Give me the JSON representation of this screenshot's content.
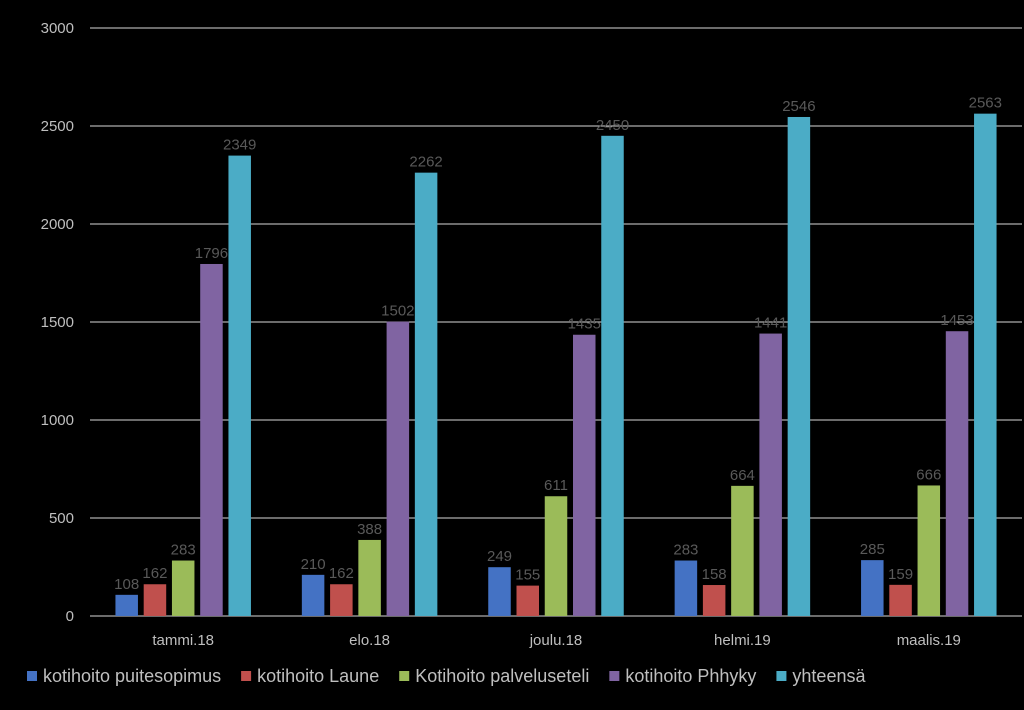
{
  "chart_data": {
    "type": "bar",
    "categories": [
      "tammi.18",
      "elo.18",
      "joulu.18",
      "helmi.19",
      "maalis.19"
    ],
    "series": [
      {
        "name": "kotihoito puitesopimus",
        "color": "#4472c4",
        "values": [
          108,
          210,
          249,
          283,
          285
        ]
      },
      {
        "name": "kotihoito Laune",
        "color": "#c0504d",
        "values": [
          162,
          162,
          155,
          158,
          159
        ]
      },
      {
        "name": "Kotihoito palveluseteli",
        "color": "#9bbb59",
        "values": [
          283,
          388,
          611,
          664,
          666
        ]
      },
      {
        "name": "kotihoito Phhyky",
        "color": "#8064a2",
        "values": [
          1796,
          1502,
          1435,
          1441,
          1453
        ]
      },
      {
        "name": "yhteensä",
        "color": "#4bacc6",
        "values": [
          2349,
          2262,
          2450,
          2546,
          2563
        ]
      }
    ],
    "y_ticks": [
      "0",
      "500",
      "1000",
      "1500",
      "2000",
      "2500",
      "3000"
    ],
    "ylim": [
      0,
      3000
    ],
    "grid": true,
    "legend_position": "bottom",
    "data_labels": true
  }
}
